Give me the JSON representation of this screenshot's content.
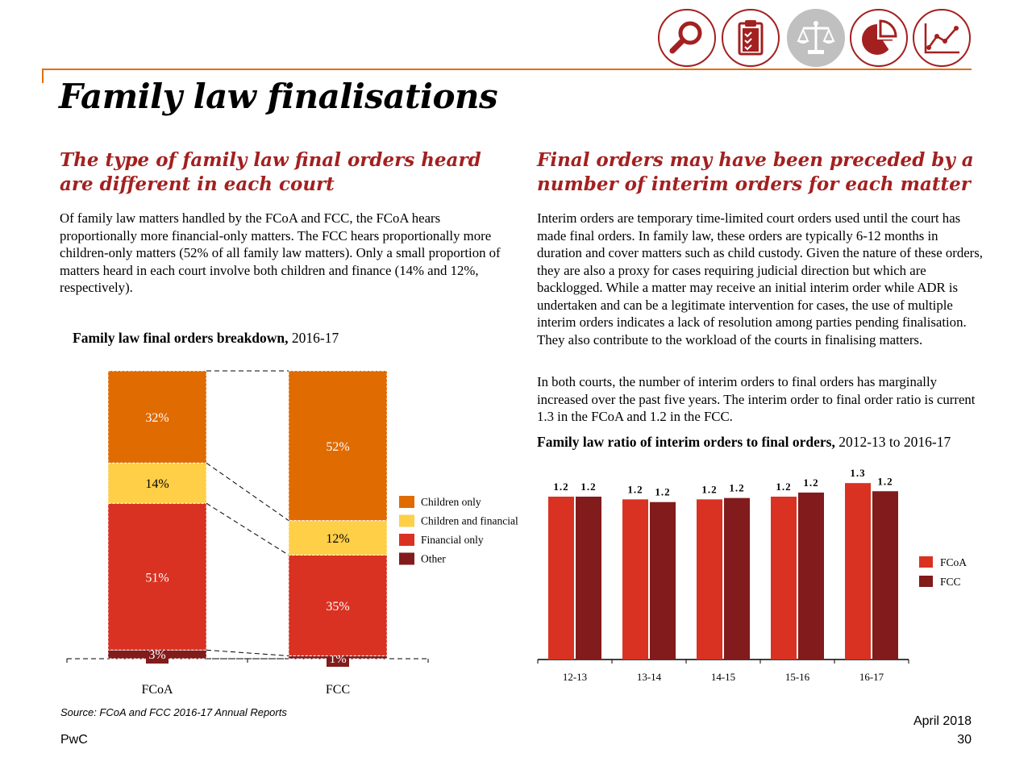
{
  "title": "Family law finalisations",
  "left": {
    "heading": "The type of family law final orders heard are different in each court",
    "body": "Of family law matters handled by the FCoA and FCC, the FCoA hears proportionally more financial-only matters. The FCC hears proportionally more children-only matters (52% of all family law matters). Only a small proportion of matters heard in each court involve both children and finance (14% and 12%, respectively).",
    "chart_title_bold": "Family law final orders breakdown,",
    "chart_title_rest": " 2016-17"
  },
  "right": {
    "heading": "Final orders may have been preceded by a number of interim orders for each matter",
    "body1": "Interim orders are temporary time-limited court orders used until the court has made final orders. In family law, these orders are typically 6-12 months in duration and cover matters such as child custody. Given the nature of these orders, they are also a proxy for cases requiring judicial direction but which are backlogged. While a matter may receive an initial interim order while ADR is undertaken and can be a legitimate intervention for cases, the use of multiple interim orders indicates a lack of resolution among parties pending finalisation. They also contribute to the workload of the courts in finalising matters.",
    "body2": "In both courts, the number of interim orders to final orders has marginally increased over the past five years. The interim order to final order ratio is current 1.3 in the FCoA and 1.2 in the FCC.",
    "chart_title_bold": "Family law ratio of interim orders to final orders,",
    "chart_title_rest": " 2012-13 to 2016-17"
  },
  "source": "Source: FCoA and FCC 2016-17 Annual Reports",
  "footer": {
    "left": "PwC",
    "date": "April 2018",
    "page": "30"
  },
  "icons": [
    {
      "name": "magnifier-icon",
      "active": false
    },
    {
      "name": "clipboard-checklist-icon",
      "active": false
    },
    {
      "name": "scales-icon",
      "active": true
    },
    {
      "name": "pie-chart-icon",
      "active": false
    },
    {
      "name": "line-graph-icon",
      "active": false
    }
  ],
  "colors": {
    "accent": "#a32020",
    "rule": "#e0700f",
    "children_only": "#e06b00",
    "children_and_financial": "#ffcf48",
    "financial_only": "#d93222",
    "other": "#821b1b",
    "fcoa": "#d93222",
    "fcc": "#821b1b",
    "icon_inactive_bg": "#ffffff",
    "icon_active_bg": "#c0c0c0"
  },
  "chart_data": [
    {
      "type": "bar",
      "stacked": true,
      "percent": true,
      "categories": [
        "FCoA",
        "FCC"
      ],
      "series": [
        {
          "name": "Other",
          "values": [
            3,
            1
          ],
          "labels": [
            "3%",
            "1%"
          ]
        },
        {
          "name": "Financial only",
          "values": [
            51,
            35
          ],
          "labels": [
            "51%",
            "35%"
          ]
        },
        {
          "name": "Children and financial",
          "values": [
            14,
            12
          ],
          "labels": [
            "14%",
            "12%"
          ]
        },
        {
          "name": "Children only",
          "values": [
            32,
            52
          ],
          "labels": [
            "32%",
            "52%"
          ]
        }
      ],
      "legend_order": [
        "Children only",
        "Children and financial",
        "Financial only",
        "Other"
      ],
      "legend_position": "right",
      "ylim": [
        0,
        100
      ],
      "grid": false
    },
    {
      "type": "bar",
      "categories": [
        "12-13",
        "13-14",
        "14-15",
        "15-16",
        "16-17"
      ],
      "series": [
        {
          "name": "FCoA",
          "values": [
            1.2,
            1.18,
            1.18,
            1.2,
            1.3
          ],
          "labels": [
            "1.2",
            "1.2",
            "1.2",
            "1.2",
            "1.3"
          ]
        },
        {
          "name": "FCC",
          "values": [
            1.2,
            1.16,
            1.19,
            1.23,
            1.24
          ],
          "labels": [
            "1.2",
            "1.2",
            "1.2",
            "1.2",
            "1.2"
          ]
        }
      ],
      "legend_position": "right",
      "ylim": [
        0,
        1.4
      ],
      "grid": false
    }
  ]
}
